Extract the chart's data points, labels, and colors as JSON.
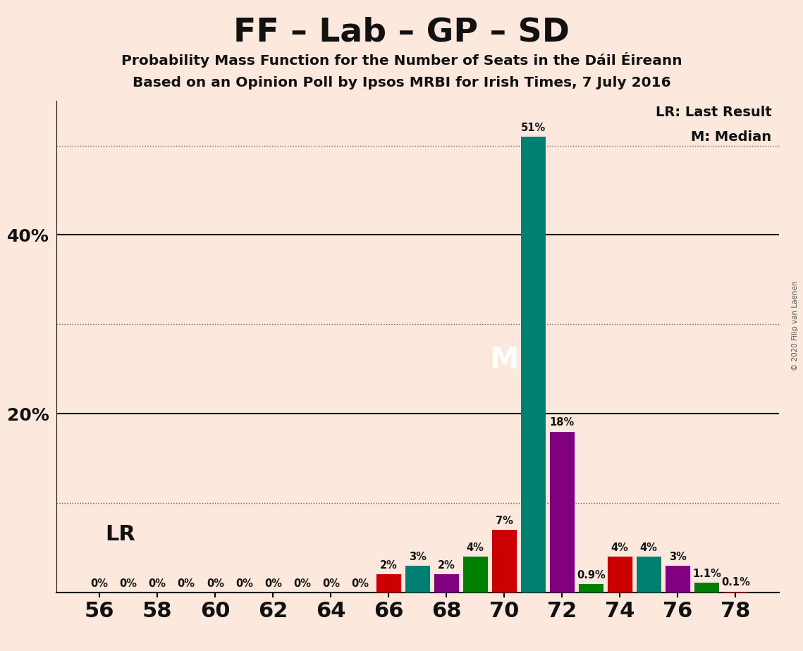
{
  "title": "FF – Lab – GP – SD",
  "subtitle1": "Probability Mass Function for the Number of Seats in the Dáil Éireann",
  "subtitle2": "Based on an Opinion Poll by Ipsos MRBI for Irish Times, 7 July 2016",
  "copyright": "© 2020 Filip van Laenen",
  "seats": [
    56,
    57,
    58,
    59,
    60,
    61,
    62,
    63,
    64,
    65,
    66,
    67,
    68,
    69,
    70,
    71,
    72,
    73,
    74,
    75,
    76,
    77,
    78
  ],
  "values": [
    0.0,
    0.0,
    0.0,
    0.0,
    0.0,
    0.0,
    0.0,
    0.0,
    0.0,
    0.0,
    2.0,
    3.0,
    2.0,
    4.0,
    7.0,
    51.0,
    18.0,
    0.9,
    4.0,
    4.0,
    3.0,
    1.1,
    0.1
  ],
  "value_labels": [
    "0%",
    "0%",
    "0%",
    "0%",
    "0%",
    "0%",
    "0%",
    "0%",
    "0%",
    "0%",
    "2%",
    "3%",
    "2%",
    "4%",
    "7%",
    "51%",
    "18%",
    "0.9%",
    "4%",
    "4%",
    "3%",
    "1.1%",
    "0.1%"
  ],
  "show_label": [
    true,
    false,
    true,
    false,
    true,
    false,
    true,
    false,
    true,
    false,
    true,
    true,
    true,
    true,
    true,
    true,
    true,
    true,
    true,
    true,
    true,
    true,
    true
  ],
  "bar_colors": [
    "#cc0000",
    "#008070",
    "#800080",
    "#008000",
    "#cc0000",
    "#008070",
    "#800080",
    "#008000",
    "#cc0000",
    "#008070",
    "#cc0000",
    "#008070",
    "#800080",
    "#008000",
    "#cc0000",
    "#008070",
    "#800080",
    "#008000",
    "#cc0000",
    "#008070",
    "#800080",
    "#008000",
    "#cc0000"
  ],
  "LR_seat": 70,
  "median_seat": 71,
  "background_color": "#fce8dc",
  "ylim": [
    0,
    55
  ],
  "dotted_lines": [
    10,
    30,
    50
  ],
  "solid_lines": [
    20,
    40
  ],
  "zero_label_01_seats": [
    63,
    64
  ],
  "xlabel_fontsize": 22,
  "ylabel_fontsize": 20
}
